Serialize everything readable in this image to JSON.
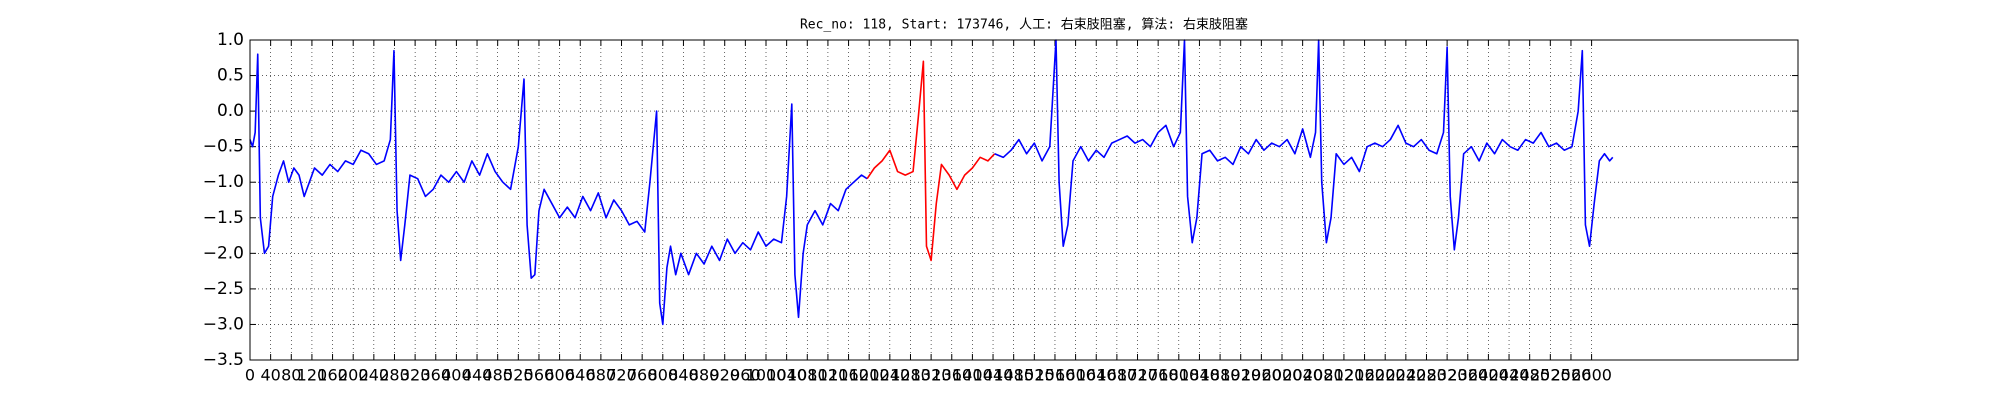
{
  "chart_data": {
    "type": "line",
    "title": "Rec_no: 118, Start: 173746, 人工: 右束肢阻塞, 算法: 右束肢阻塞",
    "xlim": [
      0,
      3000
    ],
    "ylim": [
      -3.5,
      1.0
    ],
    "grid": true,
    "xticks": [
      0,
      40,
      80,
      120,
      160,
      200,
      240,
      280,
      320,
      360,
      400,
      440,
      480,
      520,
      560,
      600,
      640,
      680,
      720,
      760,
      800,
      840,
      880,
      920,
      960,
      1000,
      1040,
      1080,
      1120,
      1160,
      1200,
      1240,
      1280,
      1320,
      1360,
      1400,
      1440,
      1480,
      1520,
      1560,
      1600,
      1640,
      1680,
      1720,
      1760,
      1800,
      1840,
      1880,
      1920,
      1960,
      2000,
      2040,
      2080,
      2120,
      2160,
      2200,
      2240,
      2280,
      2320,
      2360,
      2400,
      2440,
      2480,
      2520,
      2560,
      2600
    ],
    "yticks": [
      {
        "value": 1.0,
        "label": "1.0"
      },
      0.5,
      {
        "value": 0.0,
        "label": "0.0"
      },
      {
        "value": -0.5,
        "label": "−0.5"
      },
      {
        "value": -1.0,
        "label": "−1.0"
      },
      {
        "value": -1.5,
        "label": "−1.5"
      },
      {
        "value": -2.0,
        "label": "−2.0"
      },
      {
        "value": -2.5,
        "label": "−2.5"
      },
      {
        "value": -3.0,
        "label": "−3.0"
      },
      {
        "value": -3.5,
        "label": "−3.5"
      }
    ],
    "series": [
      {
        "color": "#0000ff",
        "x": [
          0,
          5,
          10,
          15,
          20,
          28,
          36,
          44,
          55,
          65,
          75,
          85,
          95,
          105,
          115,
          125,
          140,
          155,
          170,
          185,
          200,
          215,
          230,
          245,
          260,
          272,
          279,
          285,
          292,
          300,
          310,
          325,
          340,
          355,
          370,
          385,
          400,
          415,
          430,
          445,
          460,
          475,
          490,
          505,
          520,
          531,
          537,
          545,
          552,
          560,
          570,
          585,
          600,
          615,
          630,
          645,
          660,
          675,
          690,
          705,
          720,
          735,
          750,
          765,
          775,
          788,
          794,
          800,
          808,
          815,
          825,
          835,
          850,
          865,
          880,
          895,
          910,
          925,
          940,
          955,
          970,
          985,
          1000,
          1015,
          1030,
          1040,
          1050,
          1056,
          1063,
          1072,
          1080,
          1095,
          1110,
          1125,
          1140,
          1155,
          1170,
          1185,
          1196
        ],
        "values": [
          -0.4,
          -0.5,
          -0.3,
          0.8,
          -1.5,
          -2.0,
          -1.9,
          -1.2,
          -0.9,
          -0.7,
          -1.0,
          -0.8,
          -0.9,
          -1.2,
          -1.0,
          -0.8,
          -0.9,
          -0.75,
          -0.85,
          -0.7,
          -0.75,
          -0.55,
          -0.6,
          -0.75,
          -0.7,
          -0.4,
          0.85,
          -1.4,
          -2.1,
          -1.6,
          -0.9,
          -0.95,
          -1.2,
          -1.1,
          -0.9,
          -1.0,
          -0.85,
          -1.0,
          -0.7,
          -0.9,
          -0.6,
          -0.85,
          -1.0,
          -1.1,
          -0.5,
          0.45,
          -1.6,
          -2.35,
          -2.3,
          -1.4,
          -1.1,
          -1.3,
          -1.5,
          -1.35,
          -1.5,
          -1.2,
          -1.4,
          -1.15,
          -1.5,
          -1.25,
          -1.4,
          -1.6,
          -1.55,
          -1.7,
          -1.0,
          0.0,
          -2.7,
          -3.0,
          -2.2,
          -1.9,
          -2.3,
          -2.0,
          -2.3,
          -2.0,
          -2.15,
          -1.9,
          -2.1,
          -1.8,
          -2.0,
          -1.85,
          -1.95,
          -1.7,
          -1.9,
          -1.8,
          -1.85,
          -1.2,
          0.1,
          -2.3,
          -2.9,
          -2.0,
          -1.6,
          -1.4,
          -1.6,
          -1.3,
          -1.4,
          -1.1,
          -1.0,
          -0.9,
          -0.95
        ]
      },
      {
        "color": "#ff0000",
        "x": [
          1196,
          1210,
          1225,
          1240,
          1255,
          1270,
          1285,
          1295,
          1305,
          1311,
          1320,
          1330,
          1340,
          1355,
          1370,
          1385,
          1400,
          1415,
          1430,
          1443
        ],
        "values": [
          -0.95,
          -0.8,
          -0.7,
          -0.55,
          -0.85,
          -0.9,
          -0.85,
          -0.1,
          0.7,
          -1.9,
          -2.1,
          -1.3,
          -0.75,
          -0.9,
          -1.1,
          -0.9,
          -0.8,
          -0.65,
          -0.7,
          -0.6
        ]
      },
      {
        "color": "#0000ff",
        "x": [
          1443,
          1460,
          1475,
          1490,
          1505,
          1520,
          1535,
          1550,
          1562,
          1568,
          1576,
          1585,
          1595,
          1610,
          1625,
          1640,
          1655,
          1670,
          1685,
          1700,
          1715,
          1730,
          1745,
          1760,
          1775,
          1790,
          1803,
          1811,
          1817,
          1826,
          1835,
          1845,
          1860,
          1875,
          1890,
          1905,
          1920,
          1935,
          1950,
          1965,
          1980,
          1995,
          2010,
          2025,
          2040,
          2055,
          2065,
          2071,
          2077,
          2086,
          2095,
          2105,
          2120,
          2135,
          2150,
          2165,
          2180,
          2195,
          2210,
          2225,
          2240,
          2255,
          2270,
          2285,
          2300,
          2313,
          2320,
          2326,
          2334,
          2342,
          2352,
          2367,
          2382,
          2397,
          2412,
          2427,
          2442,
          2457,
          2472,
          2487,
          2502,
          2517,
          2532,
          2547,
          2562,
          2574,
          2582,
          2588,
          2596,
          2605,
          2615,
          2625,
          2635,
          2641
        ],
        "values": [
          -0.6,
          -0.65,
          -0.55,
          -0.4,
          -0.6,
          -0.45,
          -0.7,
          -0.5,
          1.0,
          -1.0,
          -1.9,
          -1.6,
          -0.7,
          -0.5,
          -0.7,
          -0.55,
          -0.65,
          -0.45,
          -0.4,
          -0.35,
          -0.45,
          -0.4,
          -0.5,
          -0.3,
          -0.2,
          -0.5,
          -0.3,
          1.0,
          -1.2,
          -1.85,
          -1.5,
          -0.6,
          -0.55,
          -0.7,
          -0.65,
          -0.75,
          -0.5,
          -0.6,
          -0.4,
          -0.55,
          -0.45,
          -0.5,
          -0.4,
          -0.6,
          -0.25,
          -0.65,
          -0.3,
          1.0,
          -1.0,
          -1.85,
          -1.5,
          -0.6,
          -0.75,
          -0.65,
          -0.85,
          -0.5,
          -0.45,
          -0.5,
          -0.4,
          -0.2,
          -0.45,
          -0.5,
          -0.4,
          -0.55,
          -0.6,
          -0.3,
          0.9,
          -1.2,
          -1.95,
          -1.5,
          -0.6,
          -0.5,
          -0.7,
          -0.45,
          -0.6,
          -0.4,
          -0.5,
          -0.55,
          -0.4,
          -0.45,
          -0.3,
          -0.5,
          -0.45,
          -0.55,
          -0.5,
          0.0,
          0.85,
          -1.6,
          -1.9,
          -1.3,
          -0.7,
          -0.6,
          -0.7,
          -0.65
        ]
      }
    ]
  }
}
